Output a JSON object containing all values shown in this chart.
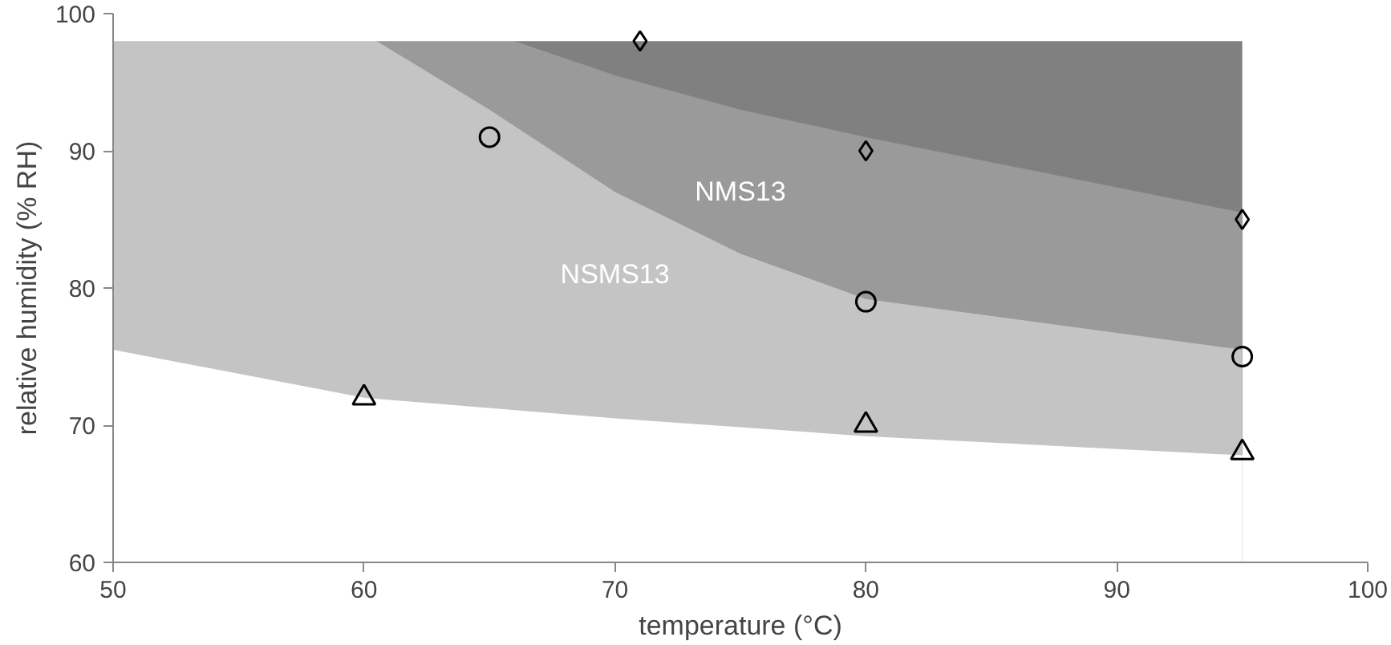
{
  "chart_data": {
    "type": "area",
    "xlabel": "temperature (°C)",
    "ylabel": "relative humidity (% RH)",
    "xlim": [
      50,
      100
    ],
    "xticks": [
      50,
      60,
      70,
      80,
      90,
      100
    ],
    "ylim": [
      60,
      100
    ],
    "yticks": [
      60,
      70,
      80,
      90,
      100
    ],
    "grid": false,
    "legend": false,
    "series": [
      {
        "color": "#808080",
        "x": [
          66,
          95
        ],
        "values": [
          98,
          98
        ]
      },
      {
        "name": "NMS13",
        "color": "#9a9a9a",
        "x": [
          60.5,
          66,
          70,
          75,
          80,
          95
        ],
        "values": [
          98,
          98,
          95.5,
          93,
          91,
          85.5
        ]
      },
      {
        "name": "NSMS13",
        "color": "#c4c4c4",
        "x": [
          50,
          60.5,
          65,
          70,
          75,
          80,
          95
        ],
        "values": [
          98,
          98,
          93,
          87,
          82.5,
          79.2,
          75.5
        ]
      },
      {
        "color": "#ffffff",
        "x": [
          50,
          60,
          70,
          80,
          95
        ],
        "values": [
          75.5,
          72,
          70.5,
          69.2,
          67.8
        ]
      },
      {
        "type": "scatter",
        "marker": "diamond",
        "color": "#000000",
        "x": [
          71,
          80,
          95
        ],
        "values": [
          98,
          90,
          85
        ]
      },
      {
        "type": "scatter",
        "marker": "circle",
        "color": "#000000",
        "x": [
          65,
          80,
          95
        ],
        "values": [
          91,
          79,
          75
        ]
      },
      {
        "type": "scatter",
        "marker": "triangle",
        "color": "#000000",
        "x": [
          60,
          80,
          95
        ],
        "values": [
          72,
          70,
          68
        ]
      }
    ]
  }
}
